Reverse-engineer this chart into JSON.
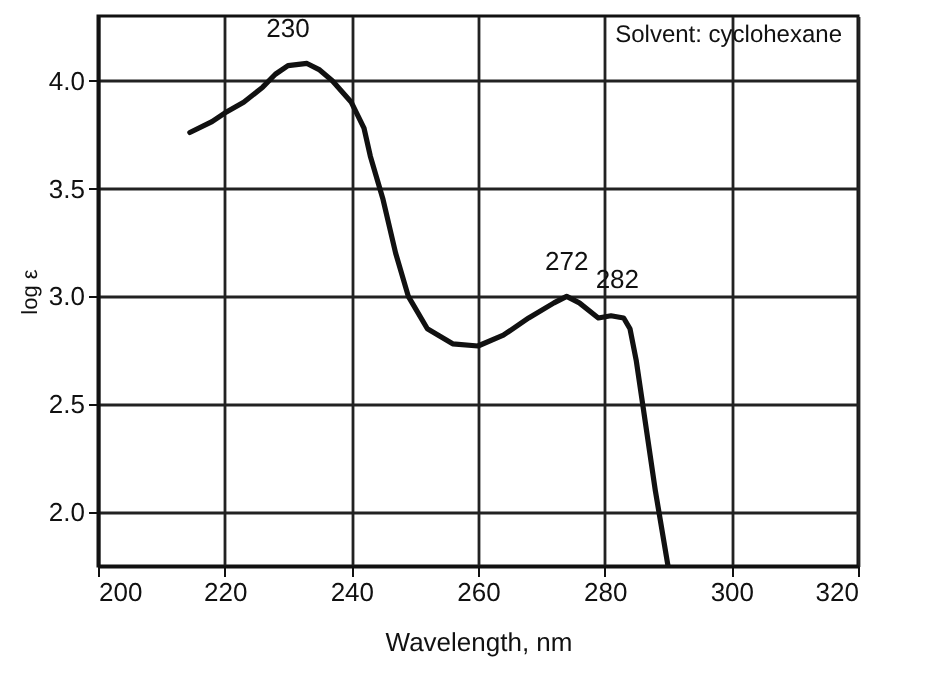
{
  "chart_data": {
    "type": "line",
    "xlabel": "Wavelength, nm",
    "ylabel": "log ε",
    "x": [
      214.5,
      218,
      220,
      223,
      226,
      228,
      230,
      233,
      235,
      237,
      240,
      242,
      243,
      245,
      247,
      249,
      252,
      256,
      260,
      264,
      268,
      272,
      274,
      276,
      279,
      281,
      283,
      284,
      285,
      286,
      288,
      290
    ],
    "series": [
      {
        "color": "#111111",
        "values": [
          3.76,
          3.81,
          3.85,
          3.9,
          3.97,
          4.03,
          4.07,
          4.08,
          4.05,
          4.0,
          3.9,
          3.78,
          3.65,
          3.45,
          3.2,
          3.0,
          2.85,
          2.78,
          2.77,
          2.82,
          2.9,
          2.97,
          3.0,
          2.97,
          2.9,
          2.91,
          2.9,
          2.85,
          2.7,
          2.5,
          2.1,
          1.75
        ]
      }
    ],
    "xlim": [
      200,
      320
    ],
    "xticks": [
      200,
      220,
      240,
      260,
      280,
      300,
      320
    ],
    "ylim": [
      1.75,
      4.3
    ],
    "yticks": [
      {
        "value": 2.0,
        "label": "2.0"
      },
      {
        "value": 2.5,
        "label": "2.5"
      },
      {
        "value": 3.0,
        "label": "3.0"
      },
      {
        "value": 3.5,
        "label": "3.5"
      },
      {
        "value": 4.0,
        "label": "4.0"
      }
    ],
    "grid": true,
    "marker": "none",
    "line_style": "solid",
    "annotations": [
      {
        "text": "230",
        "x": 230,
        "y": 4.08
      },
      {
        "text": "272",
        "x": 274,
        "y": 3.0
      },
      {
        "text": "282",
        "x": 282,
        "y": 2.92
      },
      "Solvent: cyclohexane"
    ]
  }
}
